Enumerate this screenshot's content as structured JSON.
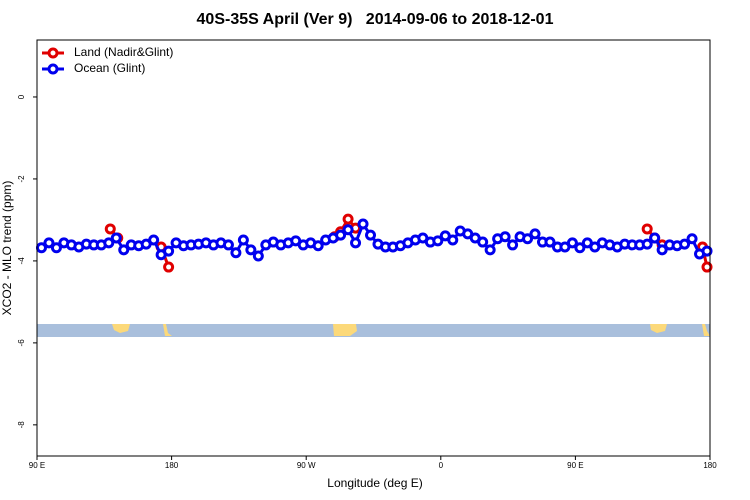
{
  "chart_data": {
    "type": "line",
    "title": "40S-35S April (Ver 9)   2014-09-06 to 2018-12-01",
    "x_label": "Longitude (deg E)",
    "y_label": "XCO2 - MLO trend (ppm)",
    "xlim": [
      90,
      540
    ],
    "xticks": [
      {
        "value": 90,
        "label": "90 E"
      },
      {
        "value": 180,
        "label": "180"
      },
      {
        "value": 270,
        "label": "90 W"
      },
      {
        "value": 360,
        "label": "0"
      },
      {
        "value": 450,
        "label": "90 E"
      },
      {
        "value": 540,
        "label": "180"
      }
    ],
    "ylim": [
      -8.76,
      1.39
    ],
    "yticks": [
      0,
      -2,
      -4,
      -6,
      -8
    ],
    "legend": "top-left",
    "series": [
      {
        "name": "Land (Nadir&Glint)",
        "color": "#e00000",
        "x": [
          139,
          144,
          158,
          173,
          178,
          283,
          289,
          293,
          298,
          303,
          408,
          498,
          503,
          508,
          528,
          535,
          538
        ],
        "values": [
          -3.22,
          -3.44,
          null,
          -3.66,
          -4.15,
          null,
          -3.41,
          -3.29,
          -2.98,
          -3.2,
          null,
          -3.22,
          -3.44,
          -3.61,
          null,
          -3.66,
          -4.15
        ]
      },
      {
        "name": "Ocean (Glint)",
        "color": "#0000ee",
        "x": [
          93,
          98,
          103,
          108,
          113,
          118,
          123,
          128,
          133,
          138,
          143,
          148,
          153,
          158,
          163,
          168,
          173,
          178,
          183,
          188,
          193,
          198,
          203,
          208,
          213,
          218,
          223,
          228,
          233,
          238,
          243,
          248,
          253,
          258,
          263,
          268,
          273,
          278,
          283,
          288,
          293,
          298,
          303,
          308,
          313,
          318,
          323,
          328,
          333,
          338,
          343,
          348,
          353,
          358,
          363,
          368,
          373,
          378,
          383,
          388,
          393,
          398,
          403,
          408,
          413,
          418,
          423,
          428,
          433,
          438,
          443,
          448,
          453,
          458,
          463,
          468,
          473,
          478,
          483,
          488,
          493,
          498,
          503,
          508,
          513,
          518,
          523,
          528,
          533,
          538
        ],
        "values": [
          -3.68,
          -3.56,
          -3.68,
          -3.56,
          -3.61,
          -3.66,
          -3.59,
          -3.61,
          -3.61,
          -3.56,
          -3.44,
          -3.73,
          -3.61,
          -3.63,
          -3.59,
          -3.49,
          -3.85,
          -3.76,
          -3.56,
          -3.63,
          -3.61,
          -3.59,
          -3.56,
          -3.61,
          -3.56,
          -3.61,
          -3.8,
          -3.49,
          -3.73,
          -3.88,
          -3.61,
          -3.54,
          -3.61,
          -3.56,
          -3.51,
          -3.61,
          -3.56,
          -3.63,
          -3.49,
          -3.44,
          -3.37,
          -3.24,
          -3.56,
          -3.1,
          -3.37,
          -3.59,
          -3.66,
          -3.66,
          -3.63,
          -3.56,
          -3.49,
          -3.44,
          -3.54,
          -3.51,
          -3.39,
          -3.49,
          -3.27,
          -3.34,
          -3.44,
          -3.54,
          -3.73,
          -3.46,
          -3.41,
          -3.61,
          -3.41,
          -3.46,
          -3.34,
          -3.54,
          -3.54,
          -3.66,
          -3.66,
          -3.56,
          -3.68,
          -3.56,
          -3.66,
          -3.56,
          -3.61,
          -3.66,
          -3.59,
          -3.61,
          -3.61,
          -3.59,
          -3.44,
          -3.73,
          -3.61,
          -3.63,
          -3.59,
          -3.46,
          -3.83,
          -3.76
        ]
      }
    ]
  }
}
